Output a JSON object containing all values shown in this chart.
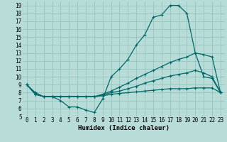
{
  "title": "",
  "xlabel": "Humidex (Indice chaleur)",
  "bg_color": "#b8ddd8",
  "grid_color": "#90c0bc",
  "line_color": "#006868",
  "xlim": [
    -0.5,
    23.5
  ],
  "ylim": [
    5,
    19.5
  ],
  "xticks": [
    0,
    1,
    2,
    3,
    4,
    5,
    6,
    7,
    8,
    9,
    10,
    11,
    12,
    13,
    14,
    15,
    16,
    17,
    18,
    19,
    20,
    21,
    22,
    23
  ],
  "yticks": [
    5,
    6,
    7,
    8,
    9,
    10,
    11,
    12,
    13,
    14,
    15,
    16,
    17,
    18,
    19
  ],
  "line1_x": [
    0,
    1,
    2,
    3,
    4,
    5,
    6,
    7,
    8,
    9,
    10,
    11,
    12,
    13,
    14,
    15,
    16,
    17,
    18,
    19,
    20,
    21,
    22,
    23
  ],
  "line1_y": [
    9.0,
    8.0,
    7.5,
    7.5,
    7.0,
    6.2,
    6.2,
    5.8,
    5.5,
    7.2,
    10.0,
    11.0,
    12.2,
    14.0,
    15.3,
    17.5,
    17.8,
    19.0,
    19.0,
    18.0,
    13.0,
    10.0,
    9.8,
    8.0
  ],
  "line2_x": [
    0,
    1,
    2,
    3,
    4,
    5,
    6,
    7,
    8,
    9,
    10,
    11,
    12,
    13,
    14,
    15,
    16,
    17,
    18,
    19,
    20,
    21,
    22,
    23
  ],
  "line2_y": [
    9.0,
    7.8,
    7.5,
    7.5,
    7.5,
    7.5,
    7.5,
    7.5,
    7.5,
    7.8,
    8.2,
    8.7,
    9.2,
    9.8,
    10.3,
    10.8,
    11.3,
    11.8,
    12.2,
    12.5,
    13.0,
    12.8,
    12.5,
    8.0
  ],
  "line3_x": [
    0,
    1,
    2,
    3,
    4,
    5,
    6,
    7,
    8,
    9,
    10,
    11,
    12,
    13,
    14,
    15,
    16,
    17,
    18,
    19,
    20,
    21,
    22,
    23
  ],
  "line3_y": [
    9.0,
    7.8,
    7.5,
    7.5,
    7.5,
    7.5,
    7.5,
    7.5,
    7.5,
    7.7,
    8.0,
    8.2,
    8.5,
    8.8,
    9.2,
    9.5,
    9.8,
    10.1,
    10.3,
    10.5,
    10.8,
    10.5,
    10.0,
    8.0
  ],
  "line4_x": [
    0,
    1,
    2,
    3,
    4,
    5,
    6,
    7,
    8,
    9,
    10,
    11,
    12,
    13,
    14,
    15,
    16,
    17,
    18,
    19,
    20,
    21,
    22,
    23
  ],
  "line4_y": [
    9.0,
    7.8,
    7.5,
    7.5,
    7.5,
    7.5,
    7.5,
    7.5,
    7.5,
    7.6,
    7.8,
    7.9,
    8.0,
    8.1,
    8.2,
    8.3,
    8.4,
    8.5,
    8.5,
    8.5,
    8.6,
    8.6,
    8.6,
    8.0
  ],
  "marker": "+",
  "markersize": 3,
  "linewidth": 0.9,
  "tick_fontsize": 5.5,
  "xlabel_fontsize": 6.5
}
